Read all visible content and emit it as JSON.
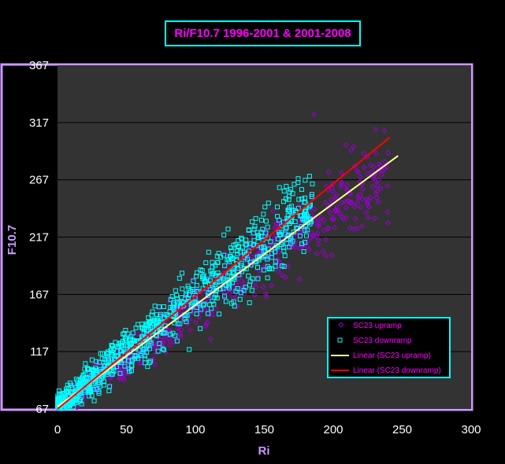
{
  "chart_data": {
    "type": "scatter",
    "title": "Ri/F10.7 1996-2001 & 2001-2008",
    "xlabel": "Ri",
    "ylabel": "F10.7",
    "xlim": [
      0,
      300
    ],
    "ylim": [
      67,
      367
    ],
    "x_ticks": [
      "0",
      "50",
      "100",
      "150",
      "200",
      "250",
      "300"
    ],
    "y_ticks": [
      "67",
      "117",
      "167",
      "217",
      "267",
      "317",
      "367"
    ],
    "grid": "horizontal",
    "legend_position": "lower-right",
    "background": "#333333",
    "series": [
      {
        "name": "SC23 upramp",
        "marker": "diamond",
        "color": "#9900cc",
        "x_range": [
          0,
          247
        ]
      },
      {
        "name": "SC23 downramp",
        "marker": "square",
        "color": "#00ffff",
        "x_range": [
          0,
          185
        ]
      }
    ],
    "trendlines": [
      {
        "name": "Linear (SC23 upramp)",
        "color": "#ffff99",
        "x": [
          0,
          247
        ],
        "y": [
          69,
          288
        ]
      },
      {
        "name": "Linear (SC23 downramp)",
        "color": "#ff0000",
        "x": [
          0,
          241
        ],
        "y": [
          67,
          304
        ]
      }
    ],
    "notable_points": [
      {
        "series": "SC23 upramp",
        "x": 186,
        "y": 324
      }
    ]
  }
}
